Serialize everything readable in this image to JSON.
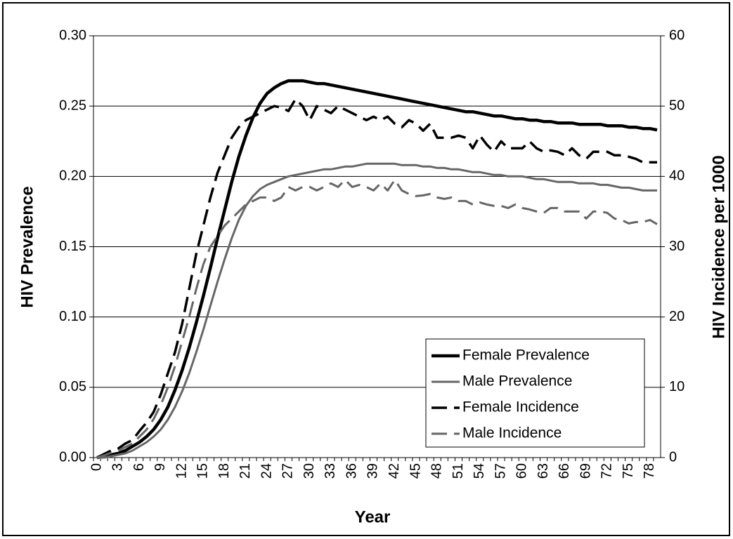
{
  "chart_data": {
    "type": "line",
    "x_label": "Year",
    "y_label": "HIV Prevalence",
    "y2_label": "HIV Incidence per 1000",
    "categories": [
      0,
      null,
      null,
      3,
      null,
      null,
      6,
      null,
      null,
      9,
      null,
      null,
      12,
      null,
      null,
      15,
      null,
      null,
      18,
      null,
      null,
      21,
      null,
      null,
      24,
      null,
      null,
      27,
      null,
      null,
      30,
      null,
      null,
      33,
      null,
      null,
      36,
      null,
      null,
      39,
      null,
      null,
      42,
      null,
      null,
      45,
      null,
      null,
      48,
      null,
      null,
      51,
      null,
      null,
      54,
      null,
      null,
      57,
      null,
      null,
      60,
      null,
      null,
      63,
      null,
      null,
      66,
      null,
      null,
      69,
      null,
      null,
      72,
      null,
      null,
      75,
      null,
      null,
      78,
      null
    ],
    "ylim": [
      0,
      0.3
    ],
    "yticks": [
      {
        "value": 0,
        "label": "0.00"
      },
      {
        "value": 0.05,
        "label": "0.05"
      },
      {
        "value": 0.1,
        "label": "0.10"
      },
      {
        "value": 0.15,
        "label": "0.15"
      },
      {
        "value": 0.2,
        "label": "0.20"
      },
      {
        "value": 0.25,
        "label": "0.25"
      },
      {
        "value": 0.3,
        "label": "0.30"
      }
    ],
    "y2lim": [
      0,
      60
    ],
    "y2ticks": [
      0,
      10,
      20,
      30,
      40,
      50,
      60
    ],
    "grid": true,
    "legend": "lower-right",
    "series": [
      {
        "name": "Female Prevalence",
        "color": "#000000",
        "style": "solid",
        "width": 4.5,
        "values": [
          0,
          0.001,
          0.002,
          0.003,
          0.005,
          0.008,
          0.011,
          0.015,
          0.02,
          0.027,
          0.036,
          0.048,
          0.062,
          0.078,
          0.096,
          0.115,
          0.135,
          0.156,
          0.176,
          0.196,
          0.214,
          0.229,
          0.242,
          0.252,
          0.259,
          0.263,
          0.266,
          0.268,
          0.268,
          0.268,
          0.267,
          0.266,
          0.266,
          0.265,
          0.264,
          0.263,
          0.262,
          0.261,
          0.26,
          0.259,
          0.258,
          0.257,
          0.256,
          0.255,
          0.254,
          0.253,
          0.252,
          0.251,
          0.25,
          0.249,
          0.248,
          0.247,
          0.246,
          0.246,
          0.245,
          0.244,
          0.243,
          0.243,
          0.242,
          0.241,
          0.241,
          0.24,
          0.24,
          0.239,
          0.239,
          0.238,
          0.238,
          0.238,
          0.237,
          0.237,
          0.237,
          0.237,
          0.236,
          0.236,
          0.236,
          0.235,
          0.235,
          0.234,
          0.234,
          0.233
        ]
      },
      {
        "name": "Male Prevalence",
        "color": "#666666",
        "style": "solid",
        "width": 3,
        "values": [
          0,
          0,
          0.001,
          0.002,
          0.003,
          0.005,
          0.008,
          0.011,
          0.015,
          0.02,
          0.027,
          0.036,
          0.047,
          0.06,
          0.075,
          0.091,
          0.108,
          0.125,
          0.141,
          0.156,
          0.169,
          0.179,
          0.186,
          0.191,
          0.194,
          0.196,
          0.198,
          0.2,
          0.201,
          0.202,
          0.203,
          0.204,
          0.205,
          0.205,
          0.206,
          0.207,
          0.207,
          0.208,
          0.209,
          0.209,
          0.209,
          0.209,
          0.209,
          0.208,
          0.208,
          0.208,
          0.207,
          0.207,
          0.206,
          0.206,
          0.205,
          0.205,
          0.204,
          0.203,
          0.203,
          0.202,
          0.201,
          0.201,
          0.2,
          0.2,
          0.2,
          0.199,
          0.198,
          0.198,
          0.197,
          0.196,
          0.196,
          0.196,
          0.195,
          0.195,
          0.195,
          0.194,
          0.194,
          0.193,
          0.192,
          0.192,
          0.191,
          0.19,
          0.19,
          0.19
        ]
      },
      {
        "name": "Female Incidence",
        "color": "#000000",
        "style": "dashed",
        "width": 3.5,
        "axis": "y2",
        "values": [
          0,
          0.5,
          1,
          1.3,
          2,
          2.5,
          3.8,
          5,
          6.5,
          9,
          12,
          15,
          19,
          24,
          29,
          33,
          37,
          40.5,
          43,
          45.5,
          47,
          48,
          48.5,
          49,
          49.5,
          50,
          49.8,
          49.3,
          51,
          50,
          48,
          50,
          49.5,
          49,
          50,
          49.5,
          49,
          48.5,
          48,
          48.5,
          48,
          48.5,
          47.5,
          47,
          48,
          47.5,
          46.5,
          47.5,
          45.5,
          45.5,
          45.5,
          45.8,
          45.5,
          44,
          45.8,
          44.5,
          43.5,
          45,
          44,
          44,
          44,
          45,
          44,
          43.5,
          43.7,
          43.5,
          43,
          44,
          43,
          42.5,
          43.5,
          43.5,
          43.5,
          43,
          43,
          42.8,
          42.5,
          42,
          42,
          42
        ]
      },
      {
        "name": "Male Incidence",
        "color": "#666666",
        "style": "dashed",
        "width": 3,
        "axis": "y2",
        "values": [
          0,
          0.3,
          0.7,
          1,
          1.5,
          2,
          3,
          4,
          5.5,
          7.5,
          10,
          13,
          16.5,
          20,
          24,
          27.5,
          30,
          31.5,
          33,
          34,
          35,
          36,
          36.5,
          37,
          37,
          36.5,
          37,
          38.5,
          38,
          38.5,
          38.5,
          38,
          38.5,
          39,
          38.5,
          39.5,
          38.5,
          38.8,
          38.5,
          38,
          39,
          38,
          39.5,
          38,
          37.5,
          37.2,
          37.3,
          37.5,
          37,
          36.8,
          37,
          36.5,
          36.5,
          36,
          36.3,
          36,
          35.8,
          35.8,
          35.5,
          36,
          35.5,
          35.3,
          35,
          34.8,
          35.5,
          35.5,
          35,
          35,
          35,
          34,
          35,
          35,
          34.8,
          34,
          33.8,
          33.3,
          33.5,
          33.5,
          33.8,
          33.2
        ]
      }
    ]
  }
}
